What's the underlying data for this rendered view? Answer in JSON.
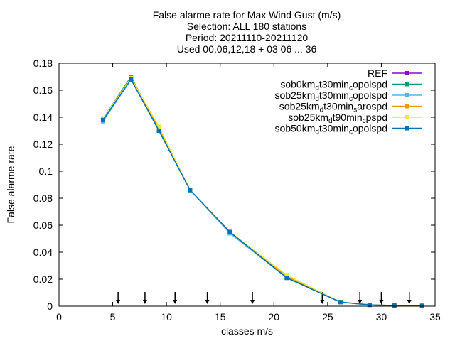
{
  "chart_data": {
    "type": "line",
    "title_lines": [
      "False alarme rate  for Max Wind Gust (m/s)",
      "Selection: ALL    180 stations",
      "Period: 20211110-20211120",
      "Used 00,06,12,18 + 03 06 ... 36"
    ],
    "xlabel": "classes m/s",
    "ylabel": "False alarme rate",
    "xlim": [
      0,
      35
    ],
    "ylim": [
      0,
      0.18
    ],
    "xticks": [
      "0",
      "5",
      "10",
      "15",
      "20",
      "25",
      "30",
      "35"
    ],
    "yticks": [
      "0",
      "0.02",
      "0.04",
      "0.06",
      "0.08",
      "0.1",
      "0.12",
      "0.14",
      "0.16",
      "0.18"
    ],
    "grid": false,
    "legend_position": "top-right",
    "arrow_markers_x": [
      5.5,
      8,
      10.8,
      13.8,
      18,
      24.5,
      28,
      30,
      32.6
    ],
    "series": [
      {
        "legend": [
          {
            "t": "REF"
          }
        ],
        "color": "#9400d3",
        "x": [
          4.1,
          6.7,
          9.3,
          12.2,
          15.9,
          21.2,
          26.2,
          28.9,
          31.2,
          33.8
        ],
        "y": [
          0.138,
          0.169,
          0.131,
          0.086,
          0.055,
          0.021,
          0.003,
          0.001,
          0.0005,
          0.0003
        ]
      },
      {
        "legend": [
          {
            "t": "sob0km"
          },
          {
            "t": "d",
            "sub": true
          },
          {
            "t": "t30min"
          },
          {
            "t": "c",
            "sub": true
          },
          {
            "t": "opolspd"
          }
        ],
        "color": "#009e73",
        "x": [
          4.1,
          6.7,
          9.3,
          12.2,
          15.9,
          21.2,
          26.2,
          28.9,
          31.2,
          33.8
        ],
        "y": [
          0.139,
          0.17,
          0.131,
          0.086,
          0.055,
          0.021,
          0.003,
          0.001,
          0.0005,
          0.0003
        ]
      },
      {
        "legend": [
          {
            "t": "sob25km"
          },
          {
            "t": "d",
            "sub": true
          },
          {
            "t": "t30min"
          },
          {
            "t": "c",
            "sub": true
          },
          {
            "t": "opolspd"
          }
        ],
        "color": "#56b4e9",
        "x": [
          4.1,
          6.7,
          9.3,
          12.2,
          15.9,
          21.2,
          26.2,
          28.9,
          31.2,
          33.8
        ],
        "y": [
          0.137,
          0.168,
          0.13,
          0.086,
          0.054,
          0.021,
          0.003,
          0.001,
          0.0005,
          0.0003
        ]
      },
      {
        "legend": [
          {
            "t": "sob25km"
          },
          {
            "t": "d",
            "sub": true
          },
          {
            "t": "t30min"
          },
          {
            "t": "s",
            "sub": true
          },
          {
            "t": "arospd"
          }
        ],
        "color": "#e69f00",
        "x": [
          4.1,
          6.7,
          9.3,
          12.2,
          15.9,
          21.2,
          26.2,
          28.9,
          31.2,
          33.8
        ],
        "y": [
          0.139,
          0.169,
          0.132,
          0.086,
          0.055,
          0.022,
          0.003,
          0.001,
          0.0005,
          0.0003
        ]
      },
      {
        "legend": [
          {
            "t": "sob25km"
          },
          {
            "t": "d",
            "sub": true
          },
          {
            "t": "t90min"
          },
          {
            "t": "c",
            "sub": true
          },
          {
            "t": "pspd"
          }
        ],
        "color": "#f0e442",
        "x": [
          4.1,
          6.7,
          9.3,
          12.2,
          15.9,
          21.2,
          26.2,
          28.9,
          31.2,
          33.8
        ],
        "y": [
          0.139,
          0.169,
          0.133,
          0.086,
          0.055,
          0.023,
          0.003,
          0.001,
          0.0005,
          0.0003
        ]
      },
      {
        "legend": [
          {
            "t": "sob50km"
          },
          {
            "t": "d",
            "sub": true
          },
          {
            "t": "t30min"
          },
          {
            "t": "c",
            "sub": true
          },
          {
            "t": "opolspd"
          }
        ],
        "color": "#0072b2",
        "x": [
          4.1,
          6.7,
          9.3,
          12.2,
          15.9,
          21.2,
          26.2,
          28.9,
          31.2,
          33.8
        ],
        "y": [
          0.138,
          0.168,
          0.13,
          0.086,
          0.055,
          0.021,
          0.003,
          0.001,
          0.0005,
          0.0003
        ]
      }
    ]
  }
}
